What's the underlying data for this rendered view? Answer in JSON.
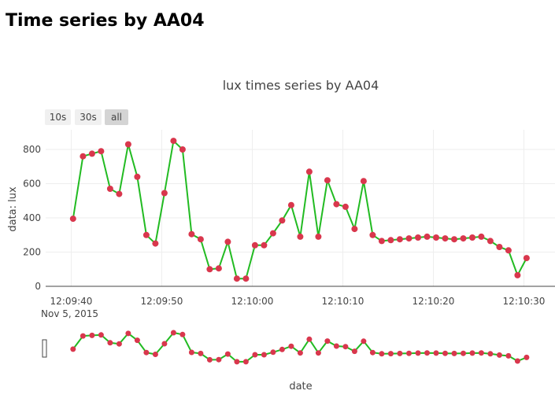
{
  "page": {
    "title": "Time series by AA04"
  },
  "buttons": [
    {
      "label": "10s",
      "active": false
    },
    {
      "label": "30s",
      "active": false
    },
    {
      "label": "all",
      "active": true
    }
  ],
  "colors": {
    "line": "#22bb22",
    "marker": "#d9374d",
    "grid": "#eeeeee",
    "axis": "#444444"
  },
  "chart_data": {
    "type": "line",
    "title": "lux times series by AA04",
    "xlabel": "date",
    "ylabel": "data: lux",
    "x_date_label": "Nov 5, 2015",
    "x_tick_labels": [
      "12:09:40",
      "12:09:50",
      "12:10:00",
      "12:10:10",
      "12:10:20",
      "12:10:30"
    ],
    "x_tick_seconds": [
      40,
      50,
      60,
      70,
      80,
      90
    ],
    "y_ticks": [
      0,
      200,
      400,
      600,
      800
    ],
    "ylim": [
      0,
      900
    ],
    "grid": true,
    "range_slider": true,
    "x_seconds_after_12_09": [
      40.2,
      41.3,
      42.3,
      43.3,
      44.3,
      45.3,
      46.3,
      47.3,
      48.3,
      49.3,
      50.3,
      51.3,
      52.3,
      53.3,
      54.3,
      55.3,
      56.3,
      57.3,
      58.3,
      59.3,
      60.3,
      61.3,
      62.3,
      63.3,
      64.3,
      65.3,
      66.3,
      67.3,
      68.3,
      69.3,
      70.3,
      71.3,
      72.3,
      73.3,
      74.3,
      75.3,
      76.3,
      77.3,
      78.3,
      79.3,
      80.3,
      81.3,
      82.3,
      83.3,
      84.3,
      85.3,
      86.3,
      87.3,
      88.3,
      89.3,
      90.3
    ],
    "values": [
      395,
      760,
      775,
      790,
      570,
      540,
      830,
      640,
      300,
      250,
      545,
      850,
      800,
      305,
      275,
      100,
      105,
      260,
      45,
      45,
      240,
      240,
      310,
      385,
      475,
      290,
      670,
      290,
      620,
      480,
      465,
      335,
      615,
      300,
      265,
      270,
      275,
      280,
      285,
      290,
      285,
      280,
      275,
      280,
      285,
      290,
      265,
      230,
      210,
      65,
      165
    ]
  }
}
